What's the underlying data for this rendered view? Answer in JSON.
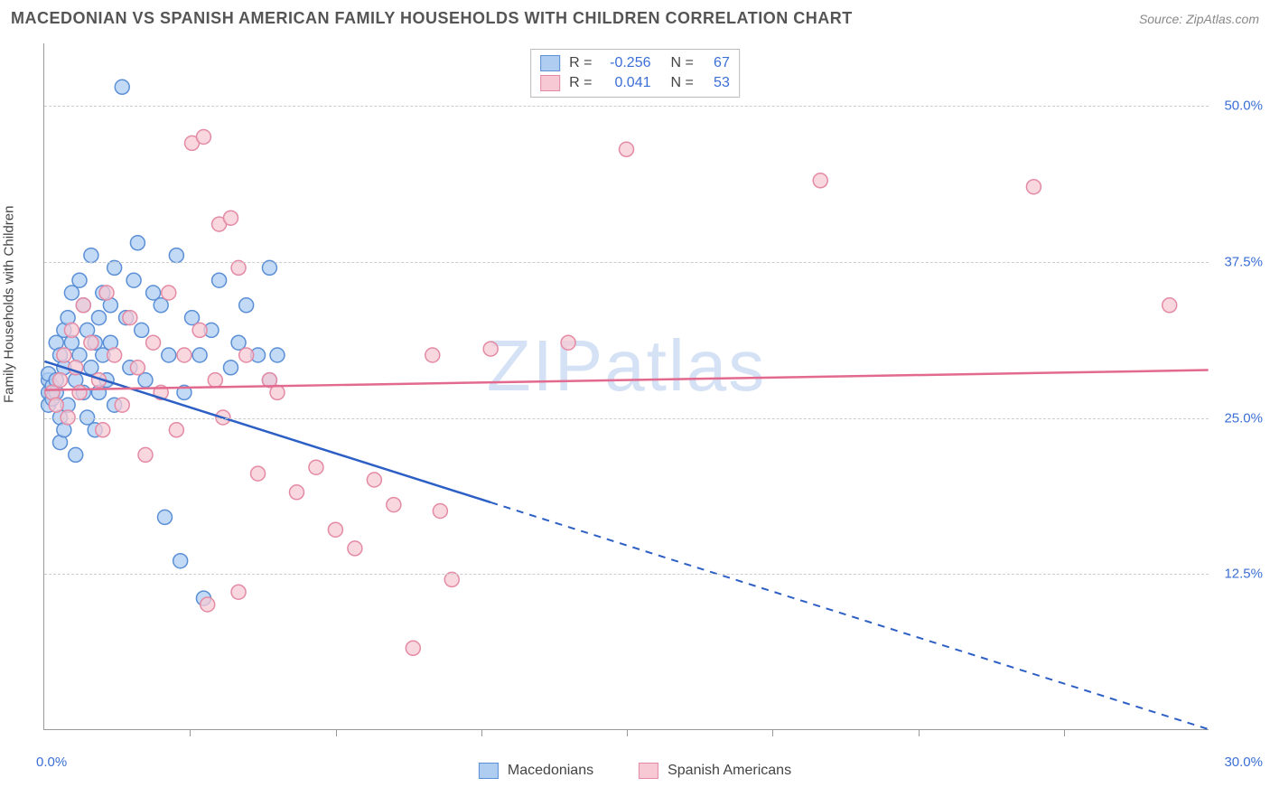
{
  "header": {
    "title": "MACEDONIAN VS SPANISH AMERICAN FAMILY HOUSEHOLDS WITH CHILDREN CORRELATION CHART",
    "source_prefix": "Source:",
    "source_name": "ZipAtlas.com"
  },
  "chart": {
    "type": "scatter",
    "watermark": "ZIPatlas",
    "background_color": "#ffffff",
    "grid_color": "#cccccc",
    "axis_color": "#999999",
    "tick_label_color": "#3b6fd6",
    "y_axis_title": "Family Households with Children",
    "xlim": [
      0,
      30
    ],
    "ylim": [
      0,
      55
    ],
    "x_min_label": "0.0%",
    "x_max_label": "30.0%",
    "x_tick_positions": [
      3.75,
      7.5,
      11.25,
      15,
      18.75,
      22.5,
      26.25
    ],
    "y_gridlines": [
      {
        "value": 12.5,
        "label": "12.5%"
      },
      {
        "value": 25.0,
        "label": "25.0%"
      },
      {
        "value": 37.5,
        "label": "37.5%"
      },
      {
        "value": 50.0,
        "label": "50.0%"
      }
    ],
    "series": [
      {
        "name": "Macedonians",
        "fill_color": "#aecdf1",
        "stroke_color": "#5b8fd6",
        "line_color": "#2d5fc4",
        "line_width": 2.5,
        "marker_radius": 8,
        "marker_opacity": 0.75,
        "r_value": "-0.256",
        "n_value": "67",
        "reg_y0": 29.5,
        "reg_y1": 0.0,
        "reg_x_solid_max": 11.5,
        "points": [
          [
            0.1,
            27
          ],
          [
            0.1,
            28
          ],
          [
            0.1,
            26
          ],
          [
            0.1,
            28.5
          ],
          [
            0.2,
            27
          ],
          [
            0.2,
            27.5
          ],
          [
            0.2,
            26.5
          ],
          [
            0.3,
            27
          ],
          [
            0.3,
            28
          ],
          [
            0.3,
            31
          ],
          [
            0.4,
            30
          ],
          [
            0.4,
            25
          ],
          [
            0.4,
            23
          ],
          [
            0.5,
            24
          ],
          [
            0.5,
            32
          ],
          [
            0.5,
            29
          ],
          [
            0.6,
            33
          ],
          [
            0.6,
            26
          ],
          [
            0.7,
            35
          ],
          [
            0.7,
            31
          ],
          [
            0.8,
            28
          ],
          [
            0.8,
            22
          ],
          [
            0.9,
            30
          ],
          [
            0.9,
            36
          ],
          [
            1.0,
            34
          ],
          [
            1.0,
            27
          ],
          [
            1.1,
            25
          ],
          [
            1.1,
            32
          ],
          [
            1.2,
            38
          ],
          [
            1.2,
            29
          ],
          [
            1.3,
            31
          ],
          [
            1.3,
            24
          ],
          [
            1.4,
            33
          ],
          [
            1.4,
            27
          ],
          [
            1.5,
            35
          ],
          [
            1.5,
            30
          ],
          [
            1.6,
            28
          ],
          [
            1.7,
            34
          ],
          [
            1.7,
            31
          ],
          [
            1.8,
            37
          ],
          [
            1.8,
            26
          ],
          [
            2.0,
            51.5
          ],
          [
            2.1,
            33
          ],
          [
            2.2,
            29
          ],
          [
            2.3,
            36
          ],
          [
            2.4,
            39
          ],
          [
            2.5,
            32
          ],
          [
            2.6,
            28
          ],
          [
            2.8,
            35
          ],
          [
            3.0,
            34
          ],
          [
            3.1,
            17
          ],
          [
            3.2,
            30
          ],
          [
            3.4,
            38
          ],
          [
            3.5,
            13.5
          ],
          [
            3.6,
            27
          ],
          [
            3.8,
            33
          ],
          [
            4.0,
            30
          ],
          [
            4.1,
            10.5
          ],
          [
            4.3,
            32
          ],
          [
            4.5,
            36
          ],
          [
            4.8,
            29
          ],
          [
            5.0,
            31
          ],
          [
            5.2,
            34
          ],
          [
            5.5,
            30
          ],
          [
            5.8,
            28
          ],
          [
            5.8,
            37
          ],
          [
            6.0,
            30
          ]
        ]
      },
      {
        "name": "Spanish Americans",
        "fill_color": "#f6c9d4",
        "stroke_color": "#e48aa4",
        "line_color": "#e26a8f",
        "line_width": 2.5,
        "marker_radius": 8,
        "marker_opacity": 0.75,
        "r_value": "0.041",
        "n_value": "53",
        "reg_y0": 27.2,
        "reg_y1": 28.8,
        "reg_x_solid_max": 30,
        "points": [
          [
            0.2,
            27
          ],
          [
            0.3,
            26
          ],
          [
            0.4,
            28
          ],
          [
            0.5,
            30
          ],
          [
            0.6,
            25
          ],
          [
            0.7,
            32
          ],
          [
            0.8,
            29
          ],
          [
            0.9,
            27
          ],
          [
            1.0,
            34
          ],
          [
            1.2,
            31
          ],
          [
            1.4,
            28
          ],
          [
            1.5,
            24
          ],
          [
            1.6,
            35
          ],
          [
            1.8,
            30
          ],
          [
            2.0,
            26
          ],
          [
            2.2,
            33
          ],
          [
            2.4,
            29
          ],
          [
            2.6,
            22
          ],
          [
            2.8,
            31
          ],
          [
            3.0,
            27
          ],
          [
            3.2,
            35
          ],
          [
            3.4,
            24
          ],
          [
            3.6,
            30
          ],
          [
            3.8,
            47
          ],
          [
            4.0,
            32
          ],
          [
            4.1,
            47.5
          ],
          [
            4.2,
            10
          ],
          [
            4.4,
            28
          ],
          [
            4.5,
            40.5
          ],
          [
            4.6,
            25
          ],
          [
            4.8,
            41
          ],
          [
            5.0,
            11
          ],
          [
            5.0,
            37
          ],
          [
            5.2,
            30
          ],
          [
            5.5,
            20.5
          ],
          [
            5.8,
            28
          ],
          [
            6.0,
            27
          ],
          [
            6.5,
            19
          ],
          [
            7.0,
            21
          ],
          [
            7.5,
            16
          ],
          [
            8.0,
            14.5
          ],
          [
            8.5,
            20
          ],
          [
            9.0,
            18
          ],
          [
            9.5,
            6.5
          ],
          [
            10.0,
            30
          ],
          [
            10.2,
            17.5
          ],
          [
            10.5,
            12
          ],
          [
            11.5,
            30.5
          ],
          [
            13.5,
            31
          ],
          [
            15.0,
            46.5
          ],
          [
            20.0,
            44
          ],
          [
            25.5,
            43.5
          ],
          [
            29.0,
            34
          ]
        ]
      }
    ],
    "legend_stats": {
      "r_label": "R =",
      "n_label": "N ="
    }
  }
}
